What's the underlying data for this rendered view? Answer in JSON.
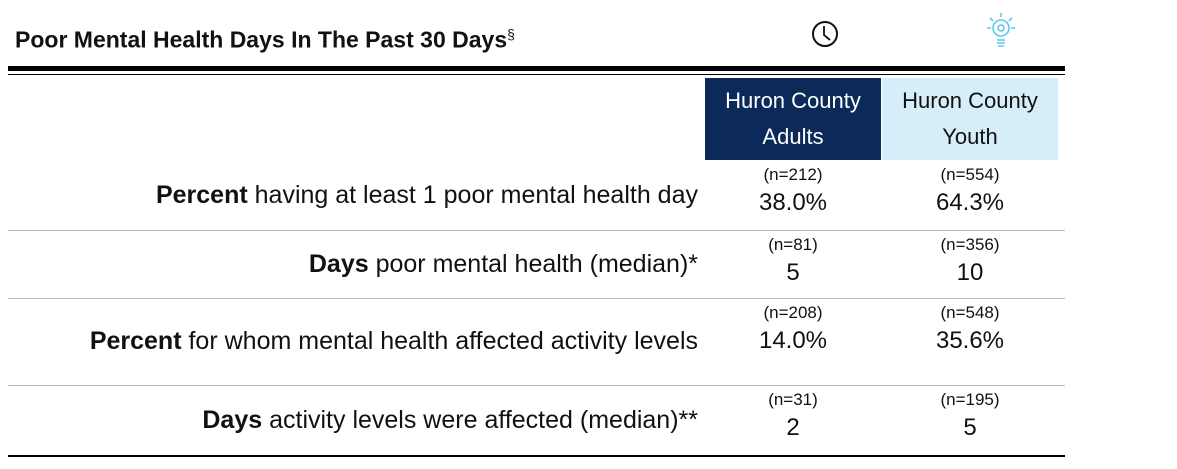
{
  "title": "Poor Mental Health Days In The Past 30 Days",
  "title_mark": "§",
  "columns": [
    {
      "lines": [
        "Huron County",
        "Adults"
      ]
    },
    {
      "lines": [
        "Huron County",
        "Youth"
      ]
    }
  ],
  "rows": [
    {
      "bold": "Percent",
      "text": "having at least 1 poor mental health day",
      "cells": [
        {
          "n": "(n=212)",
          "value": "38.0%"
        },
        {
          "n": "(n=554)",
          "value": "64.3%"
        }
      ]
    },
    {
      "bold": "Days",
      "text": "poor mental health (median)*",
      "cells": [
        {
          "n": "(n=81)",
          "value": "5"
        },
        {
          "n": "(n=356)",
          "value": "10"
        }
      ]
    },
    {
      "bold": "Percent",
      "text": "for whom mental health affected activity levels",
      "cells": [
        {
          "n": "(n=208)",
          "value": "14.0%"
        },
        {
          "n": "(n=548)",
          "value": "35.6%"
        }
      ]
    },
    {
      "bold": "Days",
      "text": "activity levels were affected (median)**",
      "cells": [
        {
          "n": "(n=31)",
          "value": "2"
        },
        {
          "n": "(n=195)",
          "value": "5"
        }
      ]
    }
  ]
}
